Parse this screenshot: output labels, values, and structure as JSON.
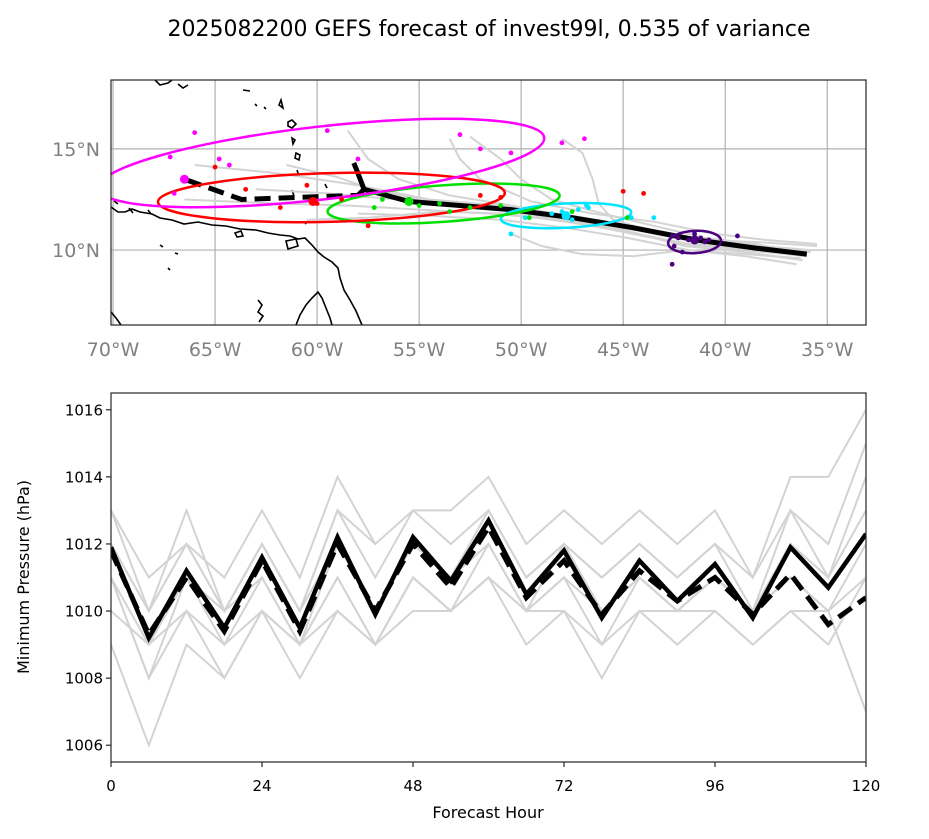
{
  "figure": {
    "title": "2025082200 GEFS forecast of invest99l, 0.535 of variance"
  },
  "chart_data": [
    {
      "type": "map-track",
      "name": "track-map",
      "title": "",
      "xlim": [
        -70.1,
        -33.1
      ],
      "ylim": [
        6.3,
        18.4
      ],
      "grid": true,
      "x_ticks": [
        {
          "value": -70,
          "label": "70°W"
        },
        {
          "value": -65,
          "label": "65°W"
        },
        {
          "value": -60,
          "label": "60°W"
        },
        {
          "value": -55,
          "label": "55°W"
        },
        {
          "value": -50,
          "label": "50°W"
        },
        {
          "value": -45,
          "label": "45°W"
        },
        {
          "value": -40,
          "label": "40°W"
        },
        {
          "value": -35,
          "label": "35°W"
        }
      ],
      "y_ticks": [
        {
          "value": 15,
          "label": "15°N"
        },
        {
          "value": 10,
          "label": "10°N"
        }
      ],
      "colors": {
        "members": "#d3d3d3",
        "mean": "#000000",
        "h24": "#4b0082",
        "h48": "#00e5ff",
        "h72": "#00e000",
        "h96": "#ff0000",
        "h120": "#ff00ff",
        "coast": "#000000",
        "grid": "#b0b0b0"
      },
      "ensemble_members": [
        [
          [
            -36.0,
            9.9
          ],
          [
            -38.5,
            10.2
          ],
          [
            -41.5,
            10.6
          ],
          [
            -44.5,
            11.2
          ],
          [
            -47.5,
            11.7
          ],
          [
            -51.0,
            12.2
          ],
          [
            -54.5,
            12.5
          ],
          [
            -58.0,
            13.2
          ],
          [
            -62.0,
            13.8
          ],
          [
            -66.0,
            14.2
          ]
        ],
        [
          [
            -35.5,
            10.2
          ],
          [
            -38.5,
            10.4
          ],
          [
            -41.2,
            10.5
          ],
          [
            -44.0,
            11.0
          ],
          [
            -47.0,
            11.5
          ],
          [
            -50.0,
            12.0
          ],
          [
            -53.0,
            12.3
          ],
          [
            -56.0,
            12.5
          ],
          [
            -59.5,
            12.8
          ],
          [
            -63.0,
            13.0
          ]
        ],
        [
          [
            -36.2,
            9.5
          ],
          [
            -39.0,
            9.9
          ],
          [
            -42.0,
            10.2
          ],
          [
            -45.0,
            11.0
          ],
          [
            -48.0,
            11.5
          ],
          [
            -51.5,
            11.8
          ],
          [
            -55.0,
            12.0
          ],
          [
            -58.5,
            12.2
          ],
          [
            -62.0,
            12.3
          ],
          [
            -66.5,
            12.5
          ]
        ],
        [
          [
            -36.5,
            9.3
          ],
          [
            -39.0,
            9.7
          ],
          [
            -41.8,
            10.0
          ],
          [
            -44.8,
            10.6
          ],
          [
            -47.8,
            11.1
          ],
          [
            -51.0,
            11.5
          ],
          [
            -54.5,
            11.7
          ],
          [
            -58.0,
            11.8
          ]
        ],
        [
          [
            -36.0,
            9.8
          ],
          [
            -38.5,
            10.3
          ],
          [
            -41.0,
            10.6
          ],
          [
            -43.5,
            11.2
          ],
          [
            -46.0,
            11.8
          ],
          [
            -48.5,
            12.5
          ],
          [
            -50.0,
            13.5
          ],
          [
            -51.0,
            14.5
          ],
          [
            -52.5,
            15.6
          ]
        ],
        [
          [
            -35.8,
            10.0
          ],
          [
            -38.3,
            10.2
          ],
          [
            -41.0,
            10.5
          ],
          [
            -43.8,
            11.0
          ],
          [
            -45.5,
            11.5
          ],
          [
            -46.2,
            12.3
          ],
          [
            -46.5,
            13.5
          ],
          [
            -47.0,
            14.8
          ],
          [
            -48.0,
            15.5
          ]
        ],
        [
          [
            -36.3,
            9.6
          ],
          [
            -39.0,
            9.8
          ],
          [
            -42.0,
            10.0
          ],
          [
            -44.5,
            9.7
          ],
          [
            -47.0,
            9.8
          ],
          [
            -49.0,
            10.2
          ],
          [
            -50.5,
            10.8
          ]
        ],
        [
          [
            -35.5,
            10.3
          ],
          [
            -38.0,
            10.5
          ],
          [
            -40.5,
            10.8
          ],
          [
            -43.5,
            11.4
          ],
          [
            -46.5,
            11.8
          ],
          [
            -49.5,
            12.4
          ],
          [
            -52.0,
            13.5
          ],
          [
            -53.0,
            14.5
          ],
          [
            -53.5,
            15.5
          ]
        ],
        [
          [
            -36.0,
            9.7
          ],
          [
            -39.0,
            10.0
          ],
          [
            -42.0,
            10.3
          ],
          [
            -45.0,
            10.9
          ],
          [
            -48.0,
            11.5
          ],
          [
            -51.0,
            12.0
          ],
          [
            -54.0,
            12.3
          ],
          [
            -57.0,
            12.9
          ],
          [
            -59.0,
            13.6
          ],
          [
            -61.5,
            14.2
          ]
        ],
        [
          [
            -35.8,
            9.9
          ],
          [
            -38.8,
            10.1
          ],
          [
            -41.5,
            10.4
          ],
          [
            -44.5,
            11.0
          ],
          [
            -47.5,
            11.6
          ],
          [
            -50.5,
            12.2
          ],
          [
            -53.5,
            12.7
          ],
          [
            -56.0,
            13.5
          ],
          [
            -57.5,
            14.5
          ],
          [
            -58.5,
            15.9
          ]
        ],
        [
          [
            -36.1,
            9.8
          ],
          [
            -38.9,
            10.1
          ],
          [
            -41.8,
            10.3
          ],
          [
            -44.8,
            10.9
          ],
          [
            -47.8,
            11.4
          ],
          [
            -50.8,
            11.8
          ],
          [
            -54.0,
            11.9
          ],
          [
            -57.5,
            11.6
          ],
          [
            -60.5,
            11.5
          ]
        ]
      ],
      "mean_track": [
        [
          -36.0,
          9.8
        ],
        [
          -38.5,
          10.1
        ],
        [
          -41.4,
          10.5
        ],
        [
          -44.5,
          11.1
        ],
        [
          -47.5,
          11.6
        ],
        [
          -50.5,
          12.0
        ],
        [
          -53.0,
          12.2
        ],
        [
          -55.5,
          12.4
        ],
        [
          -57.7,
          13.0
        ],
        [
          -58.0,
          13.8
        ],
        [
          -58.2,
          14.3
        ]
      ],
      "control_track": [
        [
          -58.0,
          12.7
        ],
        [
          -61.0,
          12.6
        ],
        [
          -63.7,
          12.5
        ],
        [
          -66.5,
          13.5
        ]
      ],
      "forecast_points": {
        "h24": [
          [
            -41.8,
            10.5
          ],
          [
            -42.3,
            10.6
          ],
          [
            -41.5,
            10.8
          ],
          [
            -41.0,
            10.4
          ],
          [
            -42.5,
            10.2
          ],
          [
            -41.2,
            10.6
          ],
          [
            -42.6,
            10.7
          ],
          [
            -40.8,
            10.5
          ],
          [
            -42.1,
            9.9
          ],
          [
            -39.4,
            10.7
          ],
          [
            -42.6,
            9.3
          ]
        ],
        "h48": [
          [
            -48.5,
            11.8
          ],
          [
            -47.8,
            11.7
          ],
          [
            -47.2,
            12.0
          ],
          [
            -46.7,
            12.1
          ],
          [
            -47.5,
            11.5
          ],
          [
            -46.8,
            12.2
          ],
          [
            -48.0,
            11.9
          ],
          [
            -44.6,
            11.6
          ],
          [
            -43.5,
            11.6
          ],
          [
            -49.8,
            11.6
          ],
          [
            -50.5,
            10.8
          ]
        ],
        "h72": [
          [
            -55.5,
            12.5
          ],
          [
            -56.8,
            12.5
          ],
          [
            -54.0,
            12.3
          ],
          [
            -52.5,
            12.1
          ],
          [
            -51.0,
            12.2
          ],
          [
            -53.5,
            11.9
          ],
          [
            -55.0,
            12.2
          ],
          [
            -57.2,
            12.1
          ],
          [
            -49.6,
            11.6
          ],
          [
            -47.5,
            11.9
          ],
          [
            -44.8,
            11.6
          ]
        ],
        "h96": [
          [
            -60.0,
            12.3
          ],
          [
            -61.8,
            12.1
          ],
          [
            -63.5,
            13.0
          ],
          [
            -58.8,
            12.5
          ],
          [
            -60.5,
            13.2
          ],
          [
            -57.5,
            11.2
          ],
          [
            -52.0,
            12.7
          ],
          [
            -51.0,
            12.6
          ],
          [
            -45.0,
            12.9
          ],
          [
            -44.0,
            12.8
          ],
          [
            -65.0,
            14.1
          ]
        ],
        "h120": [
          [
            -66.0,
            15.8
          ],
          [
            -67.2,
            14.6
          ],
          [
            -64.8,
            14.5
          ],
          [
            -64.3,
            14.2
          ],
          [
            -59.5,
            15.9
          ],
          [
            -58.0,
            14.5
          ],
          [
            -53.0,
            15.7
          ],
          [
            -52.0,
            15.0
          ],
          [
            -50.5,
            14.8
          ],
          [
            -46.9,
            15.5
          ],
          [
            -48.0,
            15.3
          ],
          [
            -67.0,
            12.8
          ]
        ]
      },
      "mean_markers": {
        "h24": [
          -41.5,
          10.5
        ],
        "h48": [
          -47.8,
          11.7
        ],
        "h72": [
          -55.5,
          12.4
        ],
        "h96": [
          -60.2,
          12.4
        ],
        "h120": [
          -66.5,
          13.5
        ]
      },
      "ellipses": [
        {
          "hour": 24,
          "center": [
            -41.5,
            10.4
          ],
          "rx_deg": 1.3,
          "ry_deg": 0.55,
          "angle_deg": -3
        },
        {
          "hour": 48,
          "center": [
            -47.8,
            11.7
          ],
          "rx_deg": 3.2,
          "ry_deg": 0.6,
          "angle_deg": -3
        },
        {
          "hour": 72,
          "center": [
            -53.8,
            12.3
          ],
          "rx_deg": 5.7,
          "ry_deg": 0.9,
          "angle_deg": -4
        },
        {
          "hour": 96,
          "center": [
            -59.3,
            12.6
          ],
          "rx_deg": 8.5,
          "ry_deg": 1.2,
          "angle_deg": -1.5
        },
        {
          "hour": 120,
          "center": [
            -59.8,
            14.3
          ],
          "rx_deg": 11.0,
          "ry_deg": 1.8,
          "angle_deg": -6.5
        }
      ]
    },
    {
      "type": "line",
      "name": "pressure-chart",
      "title": "",
      "xlabel": "Forecast Hour",
      "ylabel": "Minimum Pressure (hPa)",
      "xlim": [
        0,
        120
      ],
      "ylim": [
        1005.5,
        1016.5
      ],
      "x_ticks": [
        0,
        24,
        48,
        72,
        96,
        120
      ],
      "y_ticks": [
        1006,
        1008,
        1010,
        1012,
        1014,
        1016
      ],
      "x": [
        0,
        6,
        12,
        18,
        24,
        30,
        36,
        42,
        48,
        54,
        60,
        66,
        72,
        78,
        84,
        90,
        96,
        102,
        108,
        114,
        120
      ],
      "colors": {
        "members": "#d3d3d3",
        "mean": "#000000",
        "control": "#000000"
      },
      "series": [
        {
          "name": "mean",
          "style": "solid",
          "values": [
            1011.9,
            1009.2,
            1011.2,
            1009.5,
            1011.6,
            1009.5,
            1012.2,
            1009.9,
            1012.2,
            1010.9,
            1012.7,
            1010.5,
            1011.8,
            1009.8,
            1011.5,
            1010.3,
            1011.4,
            1009.8,
            1011.9,
            1010.7,
            1012.3
          ]
        },
        {
          "name": "control",
          "style": "dashed",
          "values": [
            1011.8,
            1009.3,
            1011.0,
            1009.4,
            1011.5,
            1009.4,
            1012.0,
            1010.0,
            1012.0,
            1010.7,
            1012.5,
            1010.4,
            1011.5,
            1009.9,
            1011.2,
            1010.3,
            1011.0,
            1009.9,
            1011.1,
            1009.6,
            1010.4
          ]
        },
        {
          "name": "member-1",
          "style": "solid",
          "values": [
            1013,
            1011,
            1012,
            1011,
            1013,
            1011,
            1014,
            1012,
            1013,
            1013,
            1014,
            1012,
            1013,
            1012,
            1013,
            1012,
            1013,
            1011,
            1014,
            1014,
            1016
          ]
        },
        {
          "name": "member-2",
          "style": "solid",
          "values": [
            1013,
            1010,
            1013,
            1010,
            1012,
            1010,
            1013,
            1011,
            1013,
            1012,
            1013,
            1011,
            1012,
            1011,
            1012,
            1011,
            1012,
            1010,
            1013,
            1012,
            1015
          ]
        },
        {
          "name": "member-3",
          "style": "solid",
          "values": [
            1012,
            1010,
            1012,
            1010,
            1012,
            1010,
            1012,
            1010,
            1012,
            1011,
            1013,
            1011,
            1012,
            1011,
            1012,
            1011,
            1012,
            1011,
            1013,
            1011,
            1014
          ]
        },
        {
          "name": "member-4",
          "style": "solid",
          "values": [
            1011,
            1009,
            1011,
            1010,
            1011,
            1009,
            1012,
            1010,
            1012,
            1011,
            1012,
            1010,
            1012,
            1010,
            1011,
            1010,
            1011,
            1010,
            1012,
            1011,
            1013
          ]
        },
        {
          "name": "member-5",
          "style": "solid",
          "values": [
            1011,
            1008,
            1011,
            1009,
            1011,
            1009,
            1011,
            1009,
            1011,
            1010,
            1012,
            1010,
            1011,
            1010,
            1011,
            1010,
            1011,
            1010,
            1011,
            1010,
            1012
          ]
        },
        {
          "name": "member-6",
          "style": "solid",
          "values": [
            1010,
            1009,
            1010,
            1009,
            1010,
            1009,
            1011,
            1009,
            1011,
            1010,
            1011,
            1010,
            1011,
            1009,
            1011,
            1010,
            1011,
            1010,
            1011,
            1010,
            1011
          ]
        },
        {
          "name": "member-7",
          "style": "solid",
          "values": [
            1011,
            1008,
            1010,
            1008,
            1010,
            1008,
            1010,
            1009,
            1010,
            1010,
            1011,
            1009,
            1010,
            1008,
            1010,
            1009,
            1010,
            1009,
            1010,
            1009,
            1011
          ]
        },
        {
          "name": "member-8",
          "style": "solid",
          "values": [
            1009,
            1006,
            1009,
            1008,
            1010,
            1009,
            1010,
            1009,
            1011,
            1010,
            1011,
            1010,
            1010,
            1009,
            1010,
            1010,
            1010,
            1009,
            1010,
            1010,
            1007
          ]
        },
        {
          "name": "member-9",
          "style": "solid",
          "values": [
            1012,
            1010,
            1012,
            1010,
            1012,
            1010,
            1013,
            1012,
            null,
            null,
            null,
            null,
            null,
            null,
            null,
            null,
            null,
            null,
            null,
            null,
            null
          ]
        }
      ]
    }
  ]
}
